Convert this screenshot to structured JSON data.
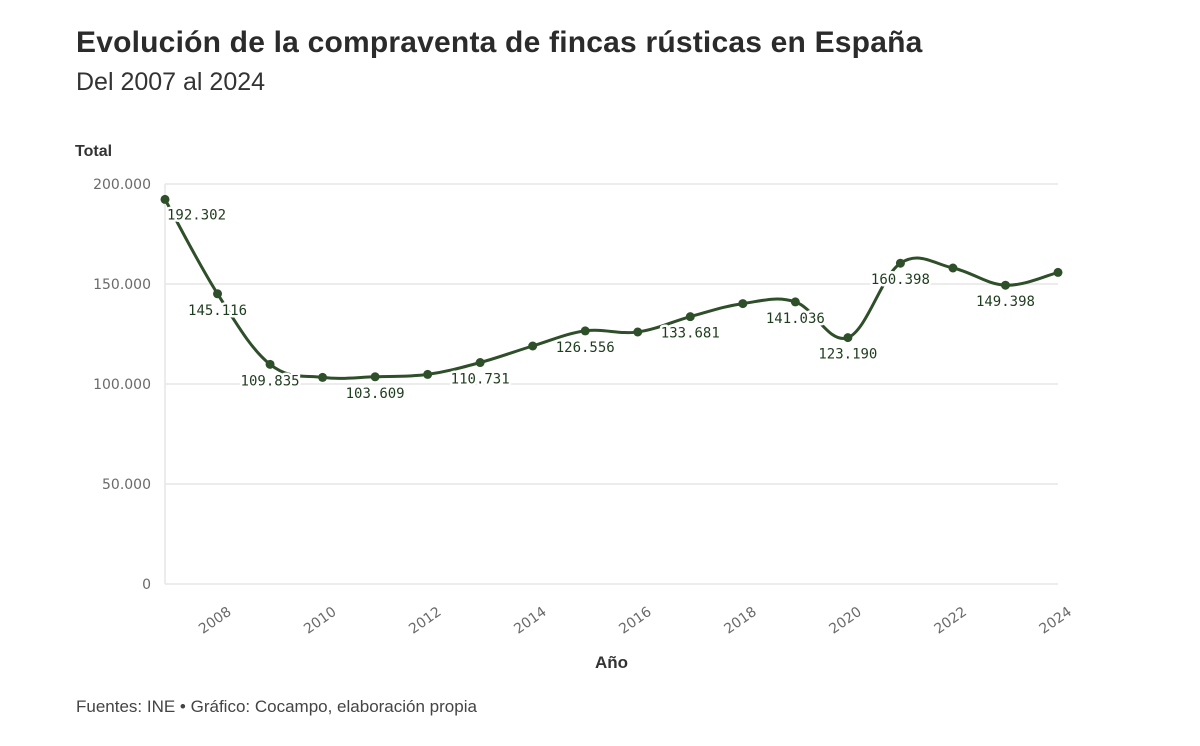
{
  "header": {
    "title": "Evolución de la compraventa de fincas rústicas en España",
    "subtitle": "Del 2007 al 2024"
  },
  "footer": {
    "source": "Fuentes: INE • Gráfico: Cocampo, elaboración propia"
  },
  "colors": {
    "line": "#2f4f2a",
    "grid": "#e6e6e6",
    "label": "#1e3d1e"
  },
  "chart_data": {
    "type": "line",
    "title": "Evolución de la compraventa de fincas rústicas en España",
    "subtitle": "Del 2007 al 2024",
    "xlabel": "Año",
    "ylabel": "Total",
    "ylim": [
      0,
      200000
    ],
    "yticks": [
      "0",
      "50.000",
      "100.000",
      "150.000",
      "200.000"
    ],
    "ytick_values": [
      0,
      50000,
      100000,
      150000,
      200000
    ],
    "xlim": [
      2007,
      2024
    ],
    "xticks": [
      "2008",
      "2010",
      "2012",
      "2014",
      "2016",
      "2018",
      "2020",
      "2022",
      "2024"
    ],
    "xtick_values": [
      2008,
      2010,
      2012,
      2014,
      2016,
      2018,
      2020,
      2022,
      2024
    ],
    "grid": true,
    "legend": "none",
    "series": [
      {
        "name": "Total",
        "x": [
          2007,
          2008,
          2009,
          2010,
          2011,
          2012,
          2013,
          2014,
          2015,
          2016,
          2017,
          2018,
          2019,
          2020,
          2021,
          2022,
          2023,
          2024
        ],
        "values": [
          192302,
          145116,
          109835,
          103300,
          103609,
          104800,
          110731,
          119000,
          126556,
          126000,
          133681,
          140200,
          141036,
          123190,
          160398,
          158000,
          149398,
          155800
        ]
      }
    ],
    "data_labels": [
      {
        "x": 2007,
        "text": "192.302",
        "position": "below-right"
      },
      {
        "x": 2008,
        "text": "145.116",
        "position": "below"
      },
      {
        "x": 2009,
        "text": "109.835",
        "position": "below"
      },
      {
        "x": 2011,
        "text": "103.609",
        "position": "below"
      },
      {
        "x": 2013,
        "text": "110.731",
        "position": "below"
      },
      {
        "x": 2015,
        "text": "126.556",
        "position": "below"
      },
      {
        "x": 2017,
        "text": "133.681",
        "position": "below"
      },
      {
        "x": 2019,
        "text": "141.036",
        "position": "below"
      },
      {
        "x": 2020,
        "text": "123.190",
        "position": "below"
      },
      {
        "x": 2021,
        "text": "160.398",
        "position": "below"
      },
      {
        "x": 2023,
        "text": "149.398",
        "position": "below"
      }
    ]
  }
}
